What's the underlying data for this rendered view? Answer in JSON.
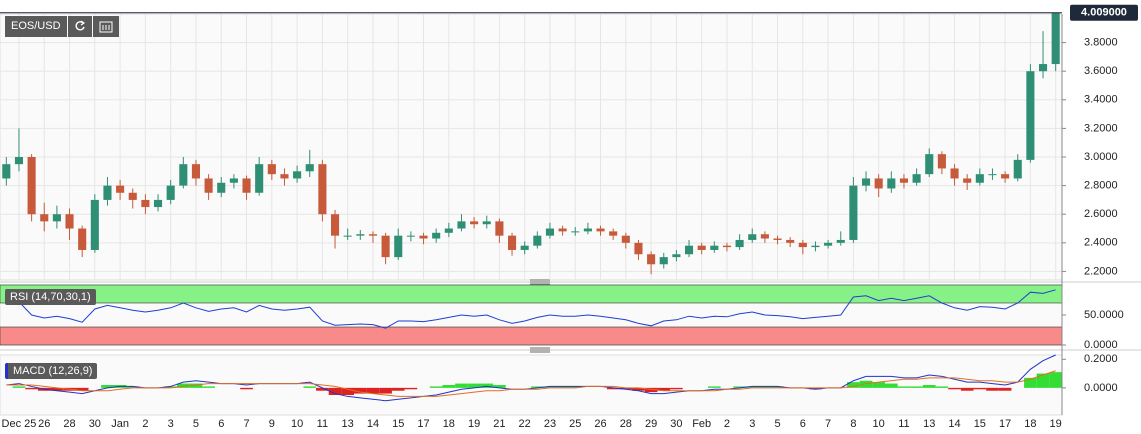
{
  "toolbar": {
    "symbol": "EOS/USD"
  },
  "chart_data": [
    {
      "type": "candlestick",
      "xlim": [
        -0.5,
        83.5
      ],
      "xticks": [
        {
          "value": 1,
          "label": "Dec 25"
        },
        {
          "value": 3,
          "label": "26"
        },
        {
          "value": 5,
          "label": "28"
        },
        {
          "value": 7,
          "label": "30"
        },
        {
          "value": 9,
          "label": "Jan"
        },
        {
          "value": 11,
          "label": "2"
        },
        {
          "value": 13,
          "label": "3"
        },
        {
          "value": 15,
          "label": "5"
        },
        {
          "value": 17,
          "label": "6"
        },
        {
          "value": 19,
          "label": "7"
        },
        {
          "value": 21,
          "label": "9"
        },
        {
          "value": 23,
          "label": "10"
        },
        {
          "value": 25,
          "label": "11"
        },
        {
          "value": 27,
          "label": "13"
        },
        {
          "value": 29,
          "label": "14"
        },
        {
          "value": 31,
          "label": "15"
        },
        {
          "value": 33,
          "label": "17"
        },
        {
          "value": 35,
          "label": "18"
        },
        {
          "value": 37,
          "label": "19"
        },
        {
          "value": 39,
          "label": "21"
        },
        {
          "value": 41,
          "label": "22"
        },
        {
          "value": 43,
          "label": "23"
        },
        {
          "value": 45,
          "label": "25"
        },
        {
          "value": 47,
          "label": "26"
        },
        {
          "value": 49,
          "label": "28"
        },
        {
          "value": 51,
          "label": "29"
        },
        {
          "value": 53,
          "label": "30"
        },
        {
          "value": 55,
          "label": "Feb"
        },
        {
          "value": 57,
          "label": "2"
        },
        {
          "value": 59,
          "label": "3"
        },
        {
          "value": 61,
          "label": "5"
        },
        {
          "value": 63,
          "label": "6"
        },
        {
          "value": 65,
          "label": "7"
        },
        {
          "value": 67,
          "label": "8"
        },
        {
          "value": 69,
          "label": "10"
        },
        {
          "value": 71,
          "label": "11"
        },
        {
          "value": 73,
          "label": "13"
        },
        {
          "value": 75,
          "label": "14"
        },
        {
          "value": 77,
          "label": "15"
        },
        {
          "value": 79,
          "label": "17"
        },
        {
          "value": 81,
          "label": "18"
        },
        {
          "value": 83,
          "label": "19"
        }
      ],
      "ylim": [
        2.14,
        4.0
      ],
      "yticks": [
        {
          "value": 2.2,
          "label": "2.2000"
        },
        {
          "value": 2.4,
          "label": "2.4000"
        },
        {
          "value": 2.6,
          "label": "2.6000"
        },
        {
          "value": 2.8,
          "label": "2.8000"
        },
        {
          "value": 3.0,
          "label": "3.0000"
        },
        {
          "value": 3.2,
          "label": "3.2000"
        },
        {
          "value": 3.4,
          "label": "3.4000"
        },
        {
          "value": 3.6,
          "label": "3.6000"
        },
        {
          "value": 3.8,
          "label": "3.8000"
        }
      ],
      "grid": true,
      "up_color": "#2f8f74",
      "down_color": "#c65a3a",
      "last_price_label": "4.009000",
      "open": [
        2.85,
        2.95,
        3.0,
        2.6,
        2.55,
        2.6,
        2.5,
        2.35,
        2.7,
        2.8,
        2.75,
        2.7,
        2.65,
        2.7,
        2.8,
        2.95,
        2.85,
        2.75,
        2.82,
        2.85,
        2.75,
        2.95,
        2.88,
        2.85,
        2.9,
        2.95,
        2.6,
        2.45,
        2.45,
        2.46,
        2.45,
        2.3,
        2.45,
        2.45,
        2.43,
        2.47,
        2.5,
        2.55,
        2.53,
        2.55,
        2.45,
        2.35,
        2.38,
        2.45,
        2.5,
        2.48,
        2.48,
        2.5,
        2.48,
        2.45,
        2.4,
        2.32,
        2.25,
        2.3,
        2.32,
        2.38,
        2.35,
        2.38,
        2.37,
        2.42,
        2.46,
        2.43,
        2.42,
        2.4,
        2.37,
        2.38,
        2.4,
        2.42,
        2.8,
        2.85,
        2.78,
        2.85,
        2.82,
        2.88,
        3.02,
        2.92,
        2.85,
        2.82,
        2.88,
        2.88,
        2.85,
        2.98,
        3.6,
        3.65
      ],
      "high": [
        3.0,
        3.2,
        3.02,
        2.68,
        2.66,
        2.64,
        2.52,
        2.74,
        2.86,
        2.84,
        2.78,
        2.74,
        2.74,
        2.84,
        3.0,
        2.98,
        2.88,
        2.86,
        2.88,
        2.87,
        3.0,
        2.98,
        2.92,
        2.94,
        3.05,
        2.98,
        2.63,
        2.5,
        2.49,
        2.48,
        2.47,
        2.5,
        2.48,
        2.47,
        2.5,
        2.54,
        2.6,
        2.58,
        2.59,
        2.57,
        2.47,
        2.41,
        2.48,
        2.54,
        2.52,
        2.51,
        2.54,
        2.52,
        2.5,
        2.47,
        2.42,
        2.34,
        2.33,
        2.35,
        2.42,
        2.4,
        2.41,
        2.4,
        2.46,
        2.5,
        2.48,
        2.45,
        2.44,
        2.42,
        2.41,
        2.42,
        2.48,
        2.86,
        2.9,
        2.88,
        2.9,
        2.88,
        2.92,
        3.06,
        3.04,
        2.95,
        2.88,
        2.92,
        2.92,
        2.9,
        3.02,
        3.65,
        3.88,
        4.009
      ],
      "low": [
        2.8,
        2.9,
        2.55,
        2.48,
        2.5,
        2.42,
        2.3,
        2.33,
        2.66,
        2.7,
        2.64,
        2.6,
        2.62,
        2.67,
        2.78,
        2.8,
        2.7,
        2.72,
        2.78,
        2.7,
        2.73,
        2.84,
        2.8,
        2.82,
        2.86,
        2.55,
        2.36,
        2.42,
        2.42,
        2.4,
        2.25,
        2.28,
        2.41,
        2.39,
        2.4,
        2.44,
        2.48,
        2.5,
        2.5,
        2.4,
        2.31,
        2.32,
        2.36,
        2.43,
        2.45,
        2.45,
        2.46,
        2.45,
        2.42,
        2.36,
        2.28,
        2.18,
        2.22,
        2.27,
        2.3,
        2.32,
        2.33,
        2.34,
        2.35,
        2.4,
        2.4,
        2.39,
        2.37,
        2.32,
        2.34,
        2.36,
        2.38,
        2.4,
        2.76,
        2.72,
        2.75,
        2.78,
        2.8,
        2.86,
        2.88,
        2.8,
        2.77,
        2.8,
        2.84,
        2.82,
        2.83,
        2.96,
        3.55,
        3.6
      ],
      "close": [
        2.95,
        3.0,
        2.6,
        2.55,
        2.6,
        2.5,
        2.35,
        2.7,
        2.8,
        2.75,
        2.7,
        2.65,
        2.7,
        2.8,
        2.95,
        2.85,
        2.75,
        2.82,
        2.85,
        2.75,
        2.95,
        2.88,
        2.85,
        2.9,
        2.95,
        2.6,
        2.45,
        2.45,
        2.46,
        2.45,
        2.3,
        2.45,
        2.45,
        2.43,
        2.47,
        2.5,
        2.55,
        2.53,
        2.55,
        2.45,
        2.35,
        2.38,
        2.45,
        2.5,
        2.48,
        2.48,
        2.5,
        2.48,
        2.45,
        2.4,
        2.32,
        2.25,
        2.3,
        2.32,
        2.38,
        2.35,
        2.38,
        2.37,
        2.42,
        2.46,
        2.43,
        2.42,
        2.4,
        2.37,
        2.38,
        2.4,
        2.42,
        2.8,
        2.85,
        2.78,
        2.85,
        2.82,
        2.88,
        3.02,
        2.92,
        2.85,
        2.82,
        2.88,
        2.88,
        2.85,
        2.98,
        3.6,
        3.65,
        4.009
      ]
    },
    {
      "type": "rsi",
      "label": "RSI (14,70,30,1)",
      "ylim": [
        0,
        100
      ],
      "yticks": [
        {
          "value": 50,
          "label": "50.0000"
        },
        {
          "value": 0,
          "label": "0.0000"
        }
      ],
      "bands": [
        {
          "range": [
            70,
            100
          ],
          "color": "#86f186"
        },
        {
          "range": [
            0,
            30
          ],
          "color": "#f88a8a"
        }
      ],
      "color": "#1f3fcf",
      "values": [
        68,
        72,
        50,
        45,
        48,
        44,
        38,
        60,
        66,
        62,
        58,
        55,
        58,
        62,
        70,
        62,
        56,
        60,
        62,
        55,
        66,
        60,
        58,
        60,
        63,
        40,
        33,
        34,
        35,
        34,
        28,
        40,
        40,
        39,
        42,
        46,
        50,
        48,
        50,
        42,
        36,
        40,
        46,
        50,
        48,
        48,
        50,
        48,
        45,
        42,
        36,
        32,
        40,
        42,
        48,
        45,
        48,
        47,
        52,
        55,
        50,
        49,
        47,
        44,
        46,
        48,
        50,
        80,
        82,
        74,
        78,
        74,
        78,
        82,
        70,
        62,
        58,
        64,
        63,
        60,
        70,
        88,
        86,
        92
      ]
    },
    {
      "type": "macd",
      "label": "MACD (12,26,9)",
      "ylim": [
        -0.19,
        0.23
      ],
      "yticks": [
        {
          "value": 0.2,
          "label": "0.2000"
        },
        {
          "value": 0,
          "label": "0.0000"
        }
      ],
      "series": [
        {
          "color": "#2233cc",
          "values": [
            0.02,
            0.03,
            0.01,
            -0.01,
            -0.02,
            -0.03,
            -0.04,
            -0.02,
            0.0,
            0.01,
            0.01,
            0.0,
            0.0,
            0.01,
            0.04,
            0.05,
            0.04,
            0.03,
            0.03,
            0.02,
            0.03,
            0.03,
            0.03,
            0.03,
            0.04,
            0.0,
            -0.04,
            -0.06,
            -0.07,
            -0.08,
            -0.09,
            -0.08,
            -0.07,
            -0.06,
            -0.05,
            -0.03,
            -0.01,
            0.0,
            0.01,
            0.0,
            -0.01,
            -0.01,
            0.0,
            0.01,
            0.01,
            0.01,
            0.01,
            0.01,
            0.0,
            -0.01,
            -0.02,
            -0.04,
            -0.04,
            -0.03,
            -0.02,
            -0.02,
            -0.01,
            -0.01,
            0.0,
            0.01,
            0.01,
            0.01,
            0.0,
            0.0,
            -0.01,
            0.0,
            0.0,
            0.05,
            0.08,
            0.08,
            0.08,
            0.07,
            0.07,
            0.09,
            0.08,
            0.06,
            0.04,
            0.04,
            0.03,
            0.02,
            0.04,
            0.13,
            0.19,
            0.23
          ]
        },
        {
          "color": "#e07020",
          "values": [
            0.02,
            0.02,
            0.02,
            0.01,
            0.0,
            -0.01,
            -0.02,
            -0.02,
            -0.02,
            -0.01,
            0.0,
            0.0,
            0.0,
            0.0,
            0.01,
            0.02,
            0.03,
            0.03,
            0.03,
            0.03,
            0.03,
            0.03,
            0.03,
            0.03,
            0.03,
            0.02,
            0.01,
            -0.01,
            -0.03,
            -0.04,
            -0.05,
            -0.06,
            -0.06,
            -0.06,
            -0.06,
            -0.05,
            -0.04,
            -0.03,
            -0.02,
            -0.02,
            -0.01,
            -0.01,
            -0.01,
            0.0,
            0.0,
            0.0,
            0.01,
            0.01,
            0.01,
            0.0,
            0.0,
            -0.01,
            -0.02,
            -0.02,
            -0.02,
            -0.02,
            -0.02,
            -0.01,
            -0.01,
            0.0,
            0.0,
            0.0,
            0.0,
            0.0,
            0.0,
            0.0,
            0.0,
            0.01,
            0.03,
            0.04,
            0.05,
            0.06,
            0.06,
            0.07,
            0.07,
            0.07,
            0.06,
            0.05,
            0.05,
            0.04,
            0.04,
            0.06,
            0.09,
            0.12
          ]
        }
      ],
      "histogram": {
        "up_color": "#33dd33",
        "down_color": "#dd2222",
        "values": [
          0,
          0.01,
          -0.01,
          -0.02,
          -0.02,
          -0.02,
          -0.02,
          0,
          0.02,
          0.02,
          0.01,
          0,
          0,
          0.01,
          0.03,
          0.03,
          0.01,
          0,
          0,
          -0.01,
          0,
          0,
          0,
          0,
          0.01,
          -0.02,
          -0.05,
          -0.05,
          -0.04,
          -0.04,
          -0.04,
          -0.02,
          -0.01,
          0,
          0.01,
          0.02,
          0.03,
          0.03,
          0.03,
          0.02,
          0,
          0,
          0.01,
          0.01,
          0.01,
          0.01,
          0,
          0,
          -0.01,
          -0.01,
          -0.02,
          -0.03,
          -0.02,
          -0.01,
          0,
          0,
          0.01,
          0,
          0.01,
          0.01,
          0.01,
          0.01,
          0,
          0,
          -0.01,
          0,
          0,
          0.04,
          0.05,
          0.04,
          0.03,
          0.01,
          0.01,
          0.02,
          0.01,
          -0.01,
          -0.02,
          -0.01,
          -0.02,
          -0.02,
          0,
          0.07,
          0.1,
          0.11
        ]
      }
    }
  ]
}
